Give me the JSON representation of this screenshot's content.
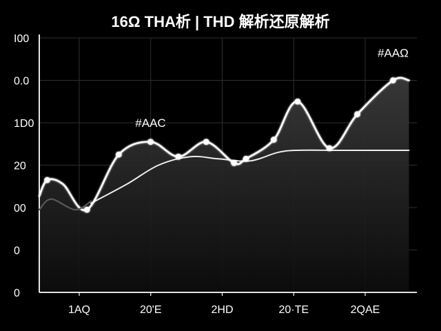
{
  "chart_data": {
    "type": "line",
    "title": "16Ω THA析 | THD 解析还原解析",
    "xlabel": "",
    "ylabel": "",
    "y_tick_labels": [
      "0",
      "0",
      "00",
      "20",
      "1D0",
      "0.0",
      "I00"
    ],
    "x_tick_labels": [
      "1AQ",
      "20'E",
      "2HD",
      "20·TE",
      "2QAE"
    ],
    "xlim": [
      0,
      9.5
    ],
    "ylim": [
      0,
      6
    ],
    "grid": true,
    "series": [
      {
        "style": "bright-with-markers",
        "x": [
          0,
          0.2,
          0.6,
          1.2,
          2.0,
          2.8,
          3.5,
          4.2,
          4.9,
          5.2,
          5.9,
          6.5,
          7.3,
          8.0,
          8.9,
          9.3
        ],
        "y": [
          2.27,
          2.65,
          2.55,
          1.95,
          3.25,
          3.55,
          3.2,
          3.55,
          3.05,
          3.15,
          3.6,
          4.5,
          3.4,
          4.2,
          5.0,
          5.0
        ],
        "markers": [
          1,
          3,
          4,
          5,
          6,
          7,
          8,
          9,
          10,
          11,
          12,
          13,
          14
        ]
      },
      {
        "style": "smooth-trend",
        "x": [
          1.3,
          2.2,
          3.0,
          3.8,
          4.5,
          5.3,
          6.0,
          6.5,
          7.5,
          8.5,
          9.3
        ],
        "y": [
          2.1,
          2.55,
          3.0,
          3.2,
          3.15,
          3.1,
          3.3,
          3.35,
          3.35,
          3.35,
          3.35
        ]
      },
      {
        "style": "dim",
        "x": [
          0,
          0.3,
          0.9,
          1.3
        ],
        "y": [
          1.95,
          2.2,
          1.95,
          2.15
        ]
      }
    ],
    "annotations": [
      {
        "text": "#AAC",
        "x": 2.8,
        "y": 3.9
      },
      {
        "text": "#AAΩ",
        "x": 8.9,
        "y": 5.55
      }
    ],
    "colors": {
      "background": "#000000",
      "line": "#ffffff",
      "dim_line": "#5a5a5a",
      "grid": "#2e2e2e",
      "fill_top": "#3a3a3a",
      "fill_bottom": "#0d0d0d"
    }
  }
}
